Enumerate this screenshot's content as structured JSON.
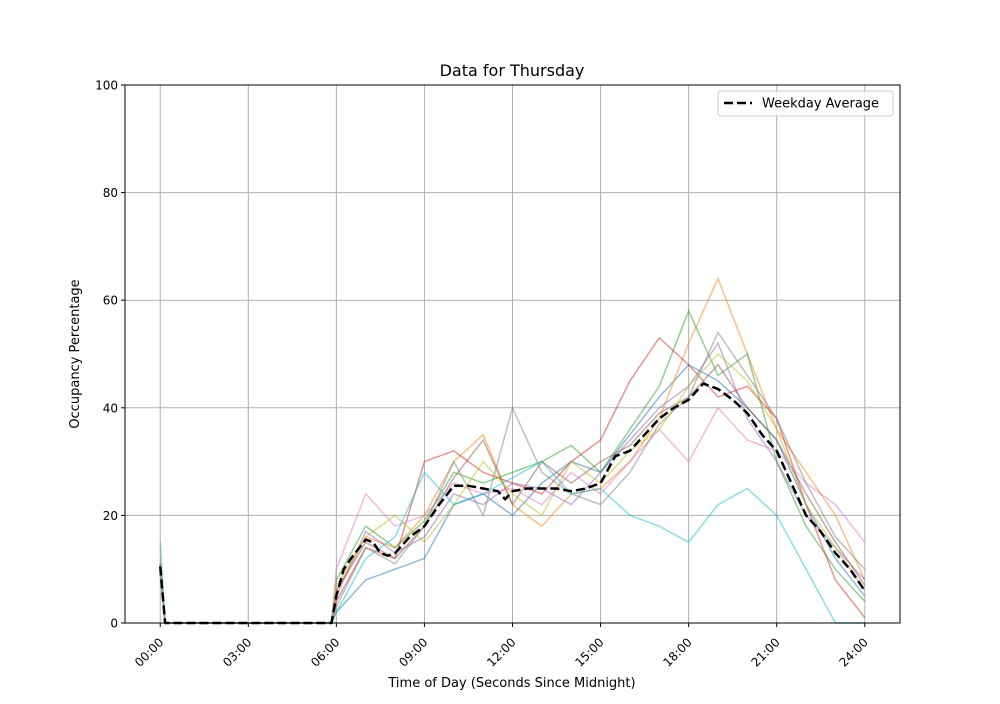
{
  "chart_data": {
    "type": "line",
    "title": "Data for Thursday",
    "xlabel": "Time of Day (Seconds Since Midnight)",
    "ylabel": "Occupancy Percentage",
    "ylim": [
      0,
      100
    ],
    "xlim": [
      "-01:12",
      "25:12"
    ],
    "xticks": [
      "00:00",
      "03:00",
      "06:00",
      "09:00",
      "12:00",
      "15:00",
      "18:00",
      "21:00",
      "24:00"
    ],
    "yticks": [
      "0",
      "20",
      "40",
      "60",
      "80",
      "100"
    ],
    "grid": true,
    "legend": {
      "position": "top-right",
      "entries": [
        "Weekday Average"
      ]
    },
    "x": [
      "00:00",
      "00:10",
      "05:50",
      "06:00",
      "07:00",
      "08:00",
      "09:00",
      "10:00",
      "11:00",
      "12:00",
      "13:00",
      "14:00",
      "15:00",
      "16:00",
      "17:00",
      "18:00",
      "19:00",
      "20:00",
      "21:00",
      "22:00",
      "23:00",
      "24:00"
    ],
    "series": [
      {
        "color": "#1f77b4",
        "values": [
          10,
          0,
          0,
          2,
          8,
          10,
          12,
          22,
          24,
          20,
          26,
          30,
          28,
          35,
          42,
          48,
          45,
          40,
          34,
          22,
          12,
          5
        ]
      },
      {
        "color": "#ff7f0e",
        "values": [
          12,
          0,
          0,
          6,
          16,
          14,
          20,
          30,
          35,
          22,
          18,
          24,
          25,
          30,
          38,
          52,
          64,
          50,
          36,
          28,
          20,
          8
        ]
      },
      {
        "color": "#2ca02c",
        "values": [
          9,
          0,
          0,
          8,
          18,
          14,
          19,
          28,
          26,
          28,
          30,
          33,
          28,
          36,
          44,
          58,
          46,
          50,
          30,
          18,
          10,
          4
        ]
      },
      {
        "color": "#d62728",
        "values": [
          11,
          0,
          0,
          4,
          14,
          12,
          30,
          32,
          28,
          26,
          24,
          30,
          34,
          45,
          53,
          48,
          42,
          44,
          38,
          22,
          8,
          1
        ]
      },
      {
        "color": "#9467bd",
        "values": [
          10,
          0,
          0,
          5,
          17,
          13,
          16,
          24,
          22,
          26,
          25,
          22,
          28,
          34,
          40,
          44,
          52,
          38,
          30,
          20,
          14,
          8
        ]
      },
      {
        "color": "#8c564b",
        "values": [
          11,
          0,
          0,
          6,
          15,
          12,
          18,
          27,
          34,
          22,
          30,
          26,
          30,
          33,
          39,
          42,
          48,
          40,
          34,
          24,
          15,
          7
        ]
      },
      {
        "color": "#e377c2",
        "values": [
          10,
          0,
          0,
          10,
          24,
          18,
          20,
          26,
          24,
          25,
          22,
          28,
          24,
          30,
          36,
          30,
          40,
          34,
          32,
          26,
          22,
          15
        ]
      },
      {
        "color": "#7f7f7f",
        "values": [
          11,
          0,
          0,
          3,
          14,
          11,
          18,
          30,
          20,
          40,
          28,
          24,
          22,
          28,
          37,
          42,
          54,
          46,
          38,
          26,
          16,
          10
        ]
      },
      {
        "color": "#bcbd22",
        "values": [
          10,
          0,
          0,
          7,
          16,
          20,
          15,
          22,
          30,
          24,
          20,
          30,
          26,
          32,
          36,
          44,
          50,
          45,
          36,
          22,
          14,
          6
        ]
      },
      {
        "color": "#17becf",
        "values": [
          15,
          0,
          0,
          2,
          12,
          16,
          28,
          22,
          24,
          27,
          30,
          24,
          25,
          20,
          18,
          15,
          22,
          25,
          20,
          10,
          0,
          0
        ]
      }
    ],
    "average": {
      "name": "Weekday Average",
      "color": "#000000",
      "x": [
        "00:00",
        "00:10",
        "05:50",
        "06:00",
        "06:15",
        "06:30",
        "07:00",
        "07:15",
        "07:30",
        "07:45",
        "08:00",
        "08:30",
        "09:00",
        "09:30",
        "10:00",
        "10:30",
        "11:00",
        "11:30",
        "11:45",
        "12:00",
        "12:30",
        "13:00",
        "13:30",
        "14:00",
        "14:30",
        "15:00",
        "15:30",
        "16:00",
        "16:30",
        "17:00",
        "17:30",
        "18:00",
        "18:30",
        "19:00",
        "19:30",
        "20:00",
        "20:30",
        "21:00",
        "21:30",
        "22:00",
        "22:30",
        "23:00",
        "23:30",
        "24:00"
      ],
      "values": [
        10.5,
        0,
        0,
        5,
        10,
        12,
        15.5,
        15,
        13,
        12.5,
        13,
        16,
        18,
        22,
        25.5,
        25.5,
        25,
        24.5,
        23,
        24.5,
        25,
        25,
        25,
        24.5,
        25,
        26,
        31,
        32,
        35,
        38,
        40,
        41.5,
        44.5,
        43.5,
        41.5,
        39,
        35,
        32,
        26,
        20,
        17,
        13,
        10,
        6
      ]
    }
  }
}
